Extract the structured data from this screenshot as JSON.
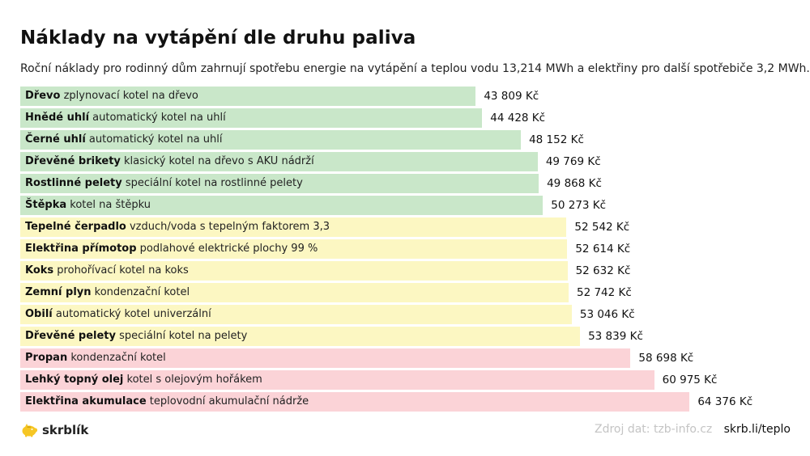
{
  "title": "Náklady na vytápění dle druhu paliva",
  "subtitle": "Roční náklady pro rodinný dům zahrnují spotřebu energie na vytápění a teplou vodu 13,214 MWh a elektřiny pro další spotřebiče 3,2 MWh.",
  "footer": {
    "brand": "skrblík",
    "source": "Zdroj dat: tzb-info.cz",
    "link": "skrb.li/teplo"
  },
  "colors": {
    "green": "#c9e7c9",
    "yellow": "#fcf7c2",
    "red": "#fbd3d7",
    "logo": "#f6c624"
  },
  "icons": {
    "logo": "piggy-bank-icon"
  },
  "chart_data": {
    "type": "bar",
    "orientation": "horizontal",
    "unit": "Kč",
    "xlim": [
      0,
      67000
    ],
    "grid": false,
    "items": [
      {
        "fuel": "Dřevo",
        "desc": "zplynovací kotel na dřevo",
        "value": 43809,
        "value_label": "43 809 Kč",
        "group": "green"
      },
      {
        "fuel": "Hnědé uhlí",
        "desc": "automatický kotel na uhlí",
        "value": 44428,
        "value_label": "44 428 Kč",
        "group": "green"
      },
      {
        "fuel": "Černé uhlí",
        "desc": "automatický kotel na uhlí",
        "value": 48152,
        "value_label": "48 152 Kč",
        "group": "green"
      },
      {
        "fuel": "Dřevěné brikety",
        "desc": "klasický kotel na dřevo s AKU nádrží",
        "value": 49769,
        "value_label": "49 769 Kč",
        "group": "green"
      },
      {
        "fuel": "Rostlinné pelety",
        "desc": "speciální kotel na rostlinné pelety",
        "value": 49868,
        "value_label": "49 868 Kč",
        "group": "green"
      },
      {
        "fuel": "Štěpka",
        "desc": "kotel na štěpku",
        "value": 50273,
        "value_label": "50 273 Kč",
        "group": "green"
      },
      {
        "fuel": "Tepelné čerpadlo",
        "desc": "vzduch/voda s tepelným faktorem 3,3",
        "value": 52542,
        "value_label": "52 542 Kč",
        "group": "yellow"
      },
      {
        "fuel": "Elektřina přímotop",
        "desc": "podlahové elektrické plochy 99 %",
        "value": 52614,
        "value_label": "52 614 Kč",
        "group": "yellow"
      },
      {
        "fuel": "Koks",
        "desc": "prohořívací kotel na koks",
        "value": 52632,
        "value_label": "52 632 Kč",
        "group": "yellow"
      },
      {
        "fuel": "Zemní plyn",
        "desc": "kondenzační kotel",
        "value": 52742,
        "value_label": "52 742 Kč",
        "group": "yellow"
      },
      {
        "fuel": "Obilí",
        "desc": "automatický kotel univerzální",
        "value": 53046,
        "value_label": "53 046 Kč",
        "group": "yellow"
      },
      {
        "fuel": "Dřevěné pelety",
        "desc": "speciální kotel na pelety",
        "value": 53839,
        "value_label": "53 839 Kč",
        "group": "yellow"
      },
      {
        "fuel": "Propan",
        "desc": "kondenzační kotel",
        "value": 58698,
        "value_label": "58 698 Kč",
        "group": "red"
      },
      {
        "fuel": "Lehký topný olej",
        "desc": "kotel s olejovým hořákem",
        "value": 60975,
        "value_label": "60 975 Kč",
        "group": "red"
      },
      {
        "fuel": "Elektřina akumulace",
        "desc": "teplovodní akumulační nádrže",
        "value": 64376,
        "value_label": "64 376 Kč",
        "group": "red"
      }
    ]
  }
}
